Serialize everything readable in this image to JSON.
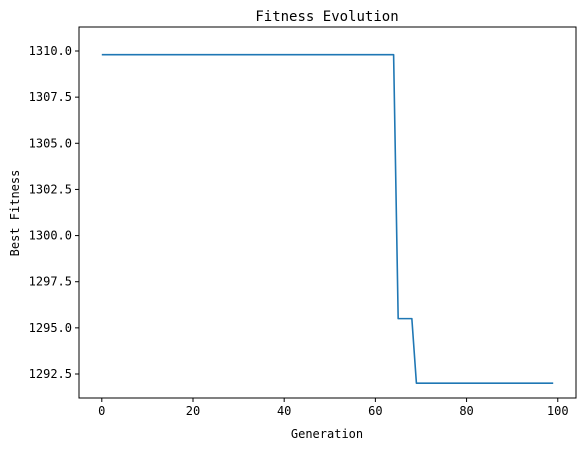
{
  "chart_data": {
    "type": "line",
    "title": "Fitness Evolution",
    "xlabel": "Generation",
    "ylabel": "Best Fitness",
    "xlim": [
      -5,
      104
    ],
    "ylim": [
      1291.2,
      1311.3
    ],
    "xticks": [
      0,
      20,
      40,
      60,
      80,
      100
    ],
    "xtick_labels": [
      "0",
      "20",
      "40",
      "60",
      "80",
      "100"
    ],
    "yticks": [
      1292.5,
      1295.0,
      1297.5,
      1300.0,
      1302.5,
      1305.0,
      1307.5,
      1310.0
    ],
    "ytick_labels": [
      "1292.5",
      "1295.0",
      "1297.5",
      "1300.0",
      "1302.5",
      "1305.0",
      "1307.5",
      "1310.0"
    ],
    "grid": false,
    "series": [
      {
        "color": "#1f77b4",
        "x": [
          0,
          64,
          65,
          68,
          69,
          99
        ],
        "y": [
          1309.8,
          1309.8,
          1295.5,
          1295.5,
          1292.0,
          1292.0
        ]
      }
    ]
  }
}
